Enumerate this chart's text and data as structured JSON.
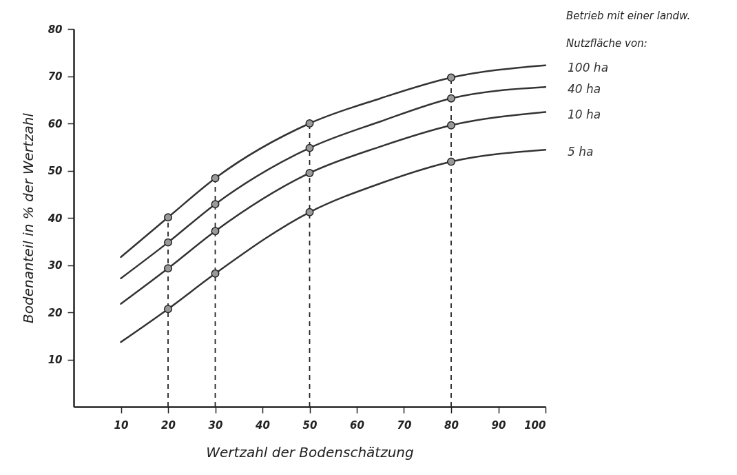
{
  "chart_data": {
    "type": "line",
    "xlabel": "Wertzahl der Bodenschätzung",
    "ylabel": "Bodenanteil in % der Wertzahl",
    "legend_title": "Betrieb mit einer landw.\nNutzfläche von:",
    "x": [
      10,
      20,
      30,
      50,
      65,
      80,
      100
    ],
    "series": [
      {
        "name": "100 ha",
        "color": "#333333",
        "values": [
          31.7,
          40.1,
          48.4,
          60.0,
          65.3,
          69.7,
          72.3
        ]
      },
      {
        "name": "40 ha",
        "color": "#333333",
        "values": [
          27.2,
          34.8,
          42.9,
          54.8,
          60.4,
          65.3,
          67.7
        ]
      },
      {
        "name": "10 ha",
        "color": "#333333",
        "values": [
          21.8,
          29.3,
          37.2,
          49.5,
          55.1,
          59.6,
          62.4
        ]
      },
      {
        "name": "5 ha",
        "color": "#333333",
        "values": [
          13.7,
          20.7,
          28.2,
          41.2,
          47.3,
          51.9,
          54.4
        ]
      }
    ],
    "xlim": [
      0,
      100
    ],
    "ylim": [
      0,
      80
    ],
    "xticks": [
      10,
      20,
      30,
      40,
      50,
      60,
      70,
      80,
      90,
      100
    ],
    "yticks": [
      10,
      20,
      30,
      40,
      50,
      60,
      70,
      80
    ],
    "ref_lines": [
      {
        "axis": "x",
        "value": 20,
        "line_style": "dashed"
      },
      {
        "axis": "x",
        "value": 30,
        "line_style": "dashed"
      },
      {
        "axis": "x",
        "value": 50,
        "line_style": "dashed"
      },
      {
        "axis": "x",
        "value": 80,
        "line_style": "dashed"
      }
    ],
    "marker": "circle"
  }
}
